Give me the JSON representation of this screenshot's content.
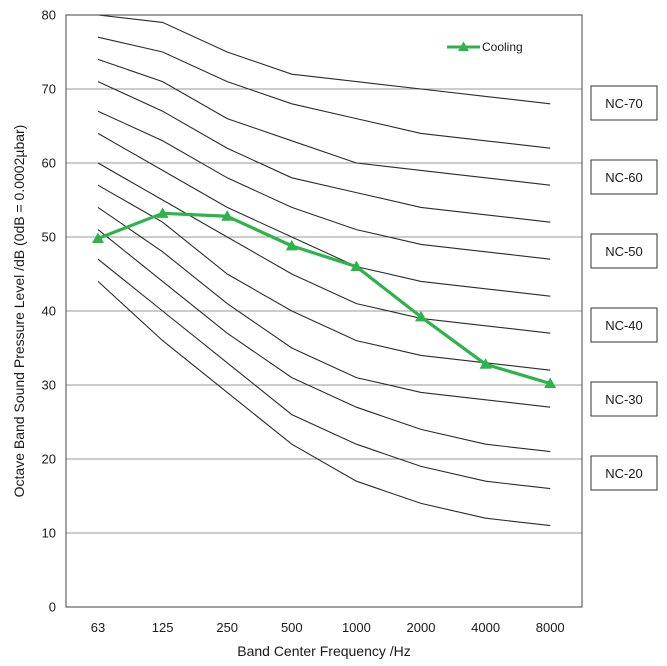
{
  "chart_data": {
    "type": "line",
    "title": "",
    "xlabel": "Band Center Frequency /Hz",
    "ylabel": "Octave Band Sound Pressure Level /dB (0dB = 0.0002µbar)",
    "categories": [
      "63",
      "125",
      "250",
      "500",
      "1000",
      "2000",
      "4000",
      "8000"
    ],
    "ylim": [
      0,
      80
    ],
    "yticks": [
      0,
      10,
      20,
      30,
      40,
      50,
      60,
      70,
      80
    ],
    "grid": "horizontal",
    "legend_position": "top-right",
    "series": [
      {
        "name": "Cooling",
        "color": "#2db34a",
        "marker": "triangle",
        "values": [
          49.8,
          53.2,
          52.8,
          48.8,
          46.0,
          39.2,
          32.8,
          30.2
        ]
      }
    ],
    "nc_curves": [
      {
        "values": [
          80,
          79,
          75,
          72,
          71,
          70,
          69,
          68
        ]
      },
      {
        "values": [
          77,
          75,
          71,
          68,
          66,
          64,
          63,
          62
        ]
      },
      {
        "values": [
          74,
          71,
          66,
          63,
          60,
          59,
          58,
          57
        ]
      },
      {
        "values": [
          71,
          67,
          62,
          58,
          56,
          54,
          53,
          52
        ]
      },
      {
        "values": [
          67,
          63,
          58,
          54,
          51,
          49,
          48,
          47
        ]
      },
      {
        "values": [
          64,
          59,
          54,
          50,
          46,
          44,
          43,
          42
        ]
      },
      {
        "values": [
          60,
          55,
          50,
          45,
          41,
          39,
          38,
          37
        ]
      },
      {
        "values": [
          57,
          52,
          45,
          40,
          36,
          34,
          33,
          32
        ]
      },
      {
        "values": [
          54,
          48,
          41,
          35,
          31,
          29,
          28,
          27
        ]
      },
      {
        "values": [
          51,
          44,
          37,
          31,
          27,
          24,
          22,
          21
        ]
      },
      {
        "values": [
          47,
          40,
          33,
          26,
          22,
          19,
          17,
          16
        ]
      },
      {
        "values": [
          44,
          36,
          29,
          22,
          17,
          14,
          12,
          11
        ]
      }
    ],
    "nc_labels": [
      {
        "label": "NC-70",
        "level": 70
      },
      {
        "label": "NC-60",
        "level": 60
      },
      {
        "label": "NC-50",
        "level": 50
      },
      {
        "label": "NC-40",
        "level": 40
      },
      {
        "label": "NC-30",
        "level": 30
      },
      {
        "label": "NC-20",
        "level": 20
      }
    ]
  }
}
